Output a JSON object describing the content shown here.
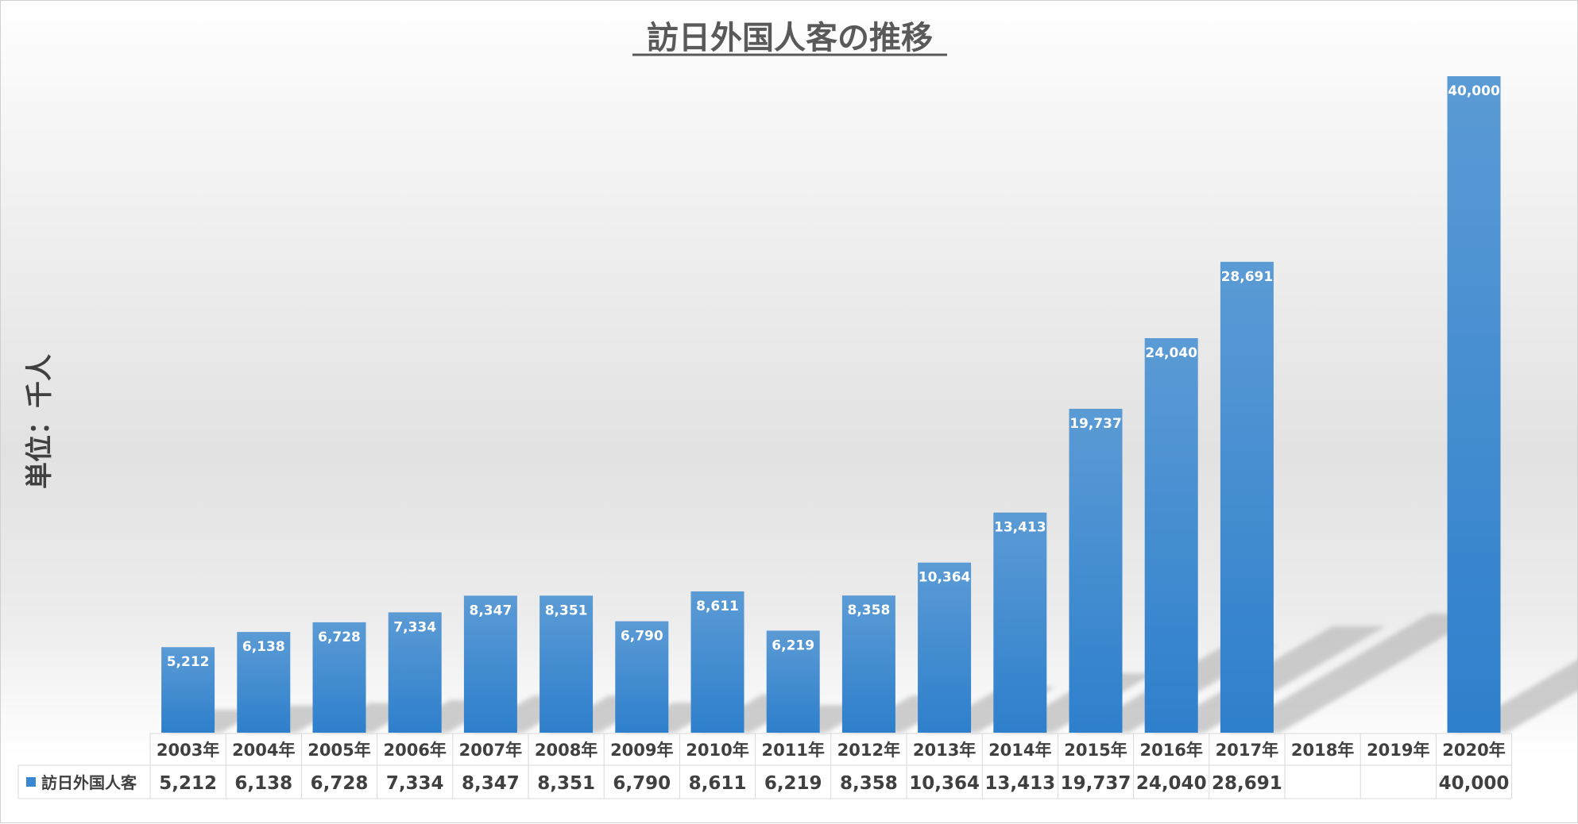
{
  "chart_data": {
    "type": "bar",
    "title": "訪日外国人客の推移",
    "ylabel": "単位：千人",
    "xlabel": "",
    "categories": [
      "2003年",
      "2004年",
      "2005年",
      "2006年",
      "2007年",
      "2008年",
      "2009年",
      "2010年",
      "2011年",
      "2012年",
      "2013年",
      "2014年",
      "2015年",
      "2016年",
      "2017年",
      "2018年",
      "2019年",
      "2020年"
    ],
    "series": [
      {
        "name": "訪日外国人客",
        "values": [
          5212,
          6138,
          6728,
          7334,
          8347,
          8351,
          6790,
          8611,
          6219,
          8358,
          10364,
          13413,
          19737,
          24040,
          28691,
          null,
          null,
          40000
        ],
        "display": [
          "5,212",
          "6,138",
          "6,728",
          "7,334",
          "8,347",
          "8,351",
          "6,790",
          "8,611",
          "6,219",
          "8,358",
          "10,364",
          "13,413",
          "19,737",
          "24,040",
          "28,691",
          "",
          "",
          "40,000"
        ]
      }
    ],
    "ylim": [
      0,
      40000
    ],
    "grid": false,
    "legend": "data-table",
    "colors": {
      "bar_top": "#5B9BD5",
      "bar_bottom": "#2E7FCC",
      "legend_key": "#3A87D4",
      "shadow": "#bdbdbd"
    }
  }
}
